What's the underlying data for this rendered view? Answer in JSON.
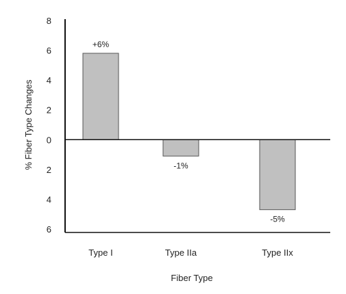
{
  "chart_data": {
    "type": "bar",
    "categories": [
      "Type I",
      "Type IIa",
      "Type IIx"
    ],
    "values": [
      5.8,
      -1.1,
      -4.7
    ],
    "data_labels": [
      "+6%",
      "-1%",
      "-5%"
    ],
    "title": "",
    "xlabel": "Fiber Type",
    "ylabel": "% Fiber Type Changes",
    "ylim": [
      -6,
      8
    ],
    "y_ticks": [
      8,
      6,
      4,
      2,
      0,
      -2,
      -4,
      -6
    ],
    "y_tick_labels": [
      "8",
      "6",
      "4",
      "2",
      "0",
      "2",
      "4",
      "6"
    ],
    "grid": false,
    "legend": "none",
    "colors": {
      "bar_fill": "#c0c0c0",
      "bar_stroke": "#555555",
      "axis": "#111111"
    }
  }
}
